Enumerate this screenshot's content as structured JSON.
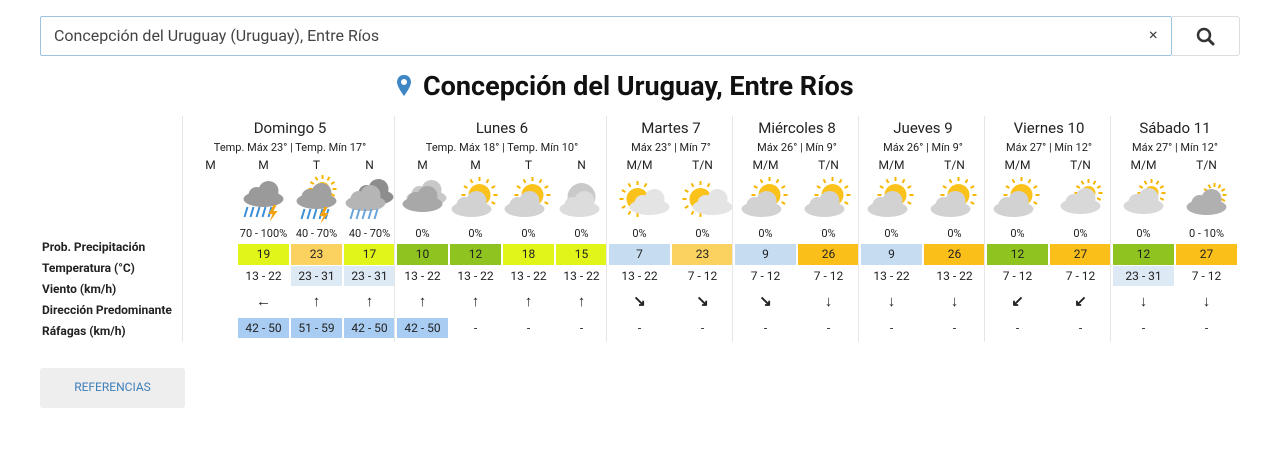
{
  "search": {
    "value": "Concepción del Uruguay (Uruguay), Entre Ríos",
    "clear": "×"
  },
  "title": "Concepción del Uruguay, Entre Ríos",
  "row_labels": [
    "Prob. Precipitación",
    "Temperatura (°C)",
    "Viento (km/h)",
    "Dirección Predominante",
    "Ráfagas (km/h)"
  ],
  "days": [
    {
      "name": "Domingo 5",
      "summary": "Temp. Máx 23° | Temp. Mín 17°",
      "periods": [
        {
          "label": "M",
          "precip": null,
          "temp": null,
          "temp_color": null,
          "wind": null,
          "wind_color": null,
          "direction": null,
          "gusts": null,
          "gust_color": null
        },
        {
          "label": "M",
          "precip": "70 - 100%",
          "temp": 19,
          "temp_color": "#e2f51a",
          "wind": "13 - 22",
          "wind_color": null,
          "direction": "←",
          "gusts": "42 - 50",
          "gust_color": "#a9cdf2"
        },
        {
          "label": "T",
          "precip": "40 - 70%",
          "temp": 23,
          "temp_color": "#fbd15f",
          "wind": "23 - 31",
          "wind_color": "#dde9f5",
          "direction": "↑",
          "gusts": "51 - 59",
          "gust_color": "#a9cdf2"
        },
        {
          "label": "N",
          "precip": "40 - 70%",
          "temp": 17,
          "temp_color": "#e2f51a",
          "wind": "23 - 31",
          "wind_color": "#dde9f5",
          "direction": "↑",
          "gusts": "42 - 50",
          "gust_color": "#a9cdf2"
        }
      ]
    },
    {
      "name": "Lunes 6",
      "summary": "Temp. Máx 18° | Temp. Mín 10°",
      "periods": [
        {
          "label": "M",
          "precip": "0%",
          "temp": 10,
          "temp_color": "#8fc31f",
          "wind": "13 - 22",
          "wind_color": null,
          "direction": "↑",
          "gusts": "42 - 50",
          "gust_color": "#a9cdf2"
        },
        {
          "label": "M",
          "precip": "0%",
          "temp": 12,
          "temp_color": "#8fc31f",
          "wind": "13 - 22",
          "wind_color": null,
          "direction": "↑",
          "gusts": "-",
          "gust_color": null
        },
        {
          "label": "T",
          "precip": "0%",
          "temp": 18,
          "temp_color": "#e2f51a",
          "wind": "13 - 22",
          "wind_color": null,
          "direction": "↑",
          "gusts": "-",
          "gust_color": null
        },
        {
          "label": "N",
          "precip": "0%",
          "temp": 15,
          "temp_color": "#e2f51a",
          "wind": "13 - 22",
          "wind_color": null,
          "direction": "↑",
          "gusts": "-",
          "gust_color": null
        }
      ]
    },
    {
      "name": "Martes 7",
      "summary": "Máx 23° | Mín 7°",
      "periods": [
        {
          "label": "M/M",
          "precip": "0%",
          "temp": 7,
          "temp_color": "#c6dcf1",
          "wind": "13 - 22",
          "wind_color": null,
          "direction": "↘",
          "gusts": "-",
          "gust_color": null
        },
        {
          "label": "T/N",
          "precip": "0%",
          "temp": 23,
          "temp_color": "#fbd15f",
          "wind": "7 - 12",
          "wind_color": null,
          "direction": "↘",
          "gusts": "-",
          "gust_color": null
        }
      ]
    },
    {
      "name": "Miércoles 8",
      "summary": "Máx 26° | Mín 9°",
      "periods": [
        {
          "label": "M/M",
          "precip": "0%",
          "temp": 9,
          "temp_color": "#c6dcf1",
          "wind": "7 - 12",
          "wind_color": null,
          "direction": "↘",
          "gusts": "-",
          "gust_color": null
        },
        {
          "label": "T/N",
          "precip": "0%",
          "temp": 26,
          "temp_color": "#fbbf1a",
          "wind": "7 - 12",
          "wind_color": null,
          "direction": "↓",
          "gusts": "-",
          "gust_color": null
        }
      ]
    },
    {
      "name": "Jueves 9",
      "summary": "Máx 26° | Mín 9°",
      "periods": [
        {
          "label": "M/M",
          "precip": "0%",
          "temp": 9,
          "temp_color": "#c6dcf1",
          "wind": "13 - 22",
          "wind_color": null,
          "direction": "↓",
          "gusts": "-",
          "gust_color": null
        },
        {
          "label": "T/N",
          "precip": "0%",
          "temp": 26,
          "temp_color": "#fbbf1a",
          "wind": "13 - 22",
          "wind_color": null,
          "direction": "↓",
          "gusts": "-",
          "gust_color": null
        }
      ]
    },
    {
      "name": "Viernes 10",
      "summary": "Máx 27° | Mín 12°",
      "periods": [
        {
          "label": "M/M",
          "precip": "0%",
          "temp": 12,
          "temp_color": "#8fc31f",
          "wind": "7 - 12",
          "wind_color": null,
          "direction": "↙",
          "gusts": "-",
          "gust_color": null
        },
        {
          "label": "T/N",
          "precip": "0%",
          "temp": 27,
          "temp_color": "#fbbf1a",
          "wind": "7 - 12",
          "wind_color": null,
          "direction": "↙",
          "gusts": "-",
          "gust_color": null
        }
      ]
    },
    {
      "name": "Sábado 11",
      "summary": "Máx 27° | Mín 12°",
      "periods": [
        {
          "label": "M/M",
          "precip": "0%",
          "temp": 12,
          "temp_color": "#8fc31f",
          "wind": "23 - 31",
          "wind_color": "#dde9f5",
          "direction": "↓",
          "gusts": "-",
          "gust_color": null
        },
        {
          "label": "T/N",
          "precip": "0 - 10%",
          "temp": 27,
          "temp_color": "#fbbf1a",
          "wind": "7 - 12",
          "wind_color": null,
          "direction": "↓",
          "gusts": "-",
          "gust_color": null
        }
      ]
    }
  ],
  "button": "REFERENCIAS"
}
